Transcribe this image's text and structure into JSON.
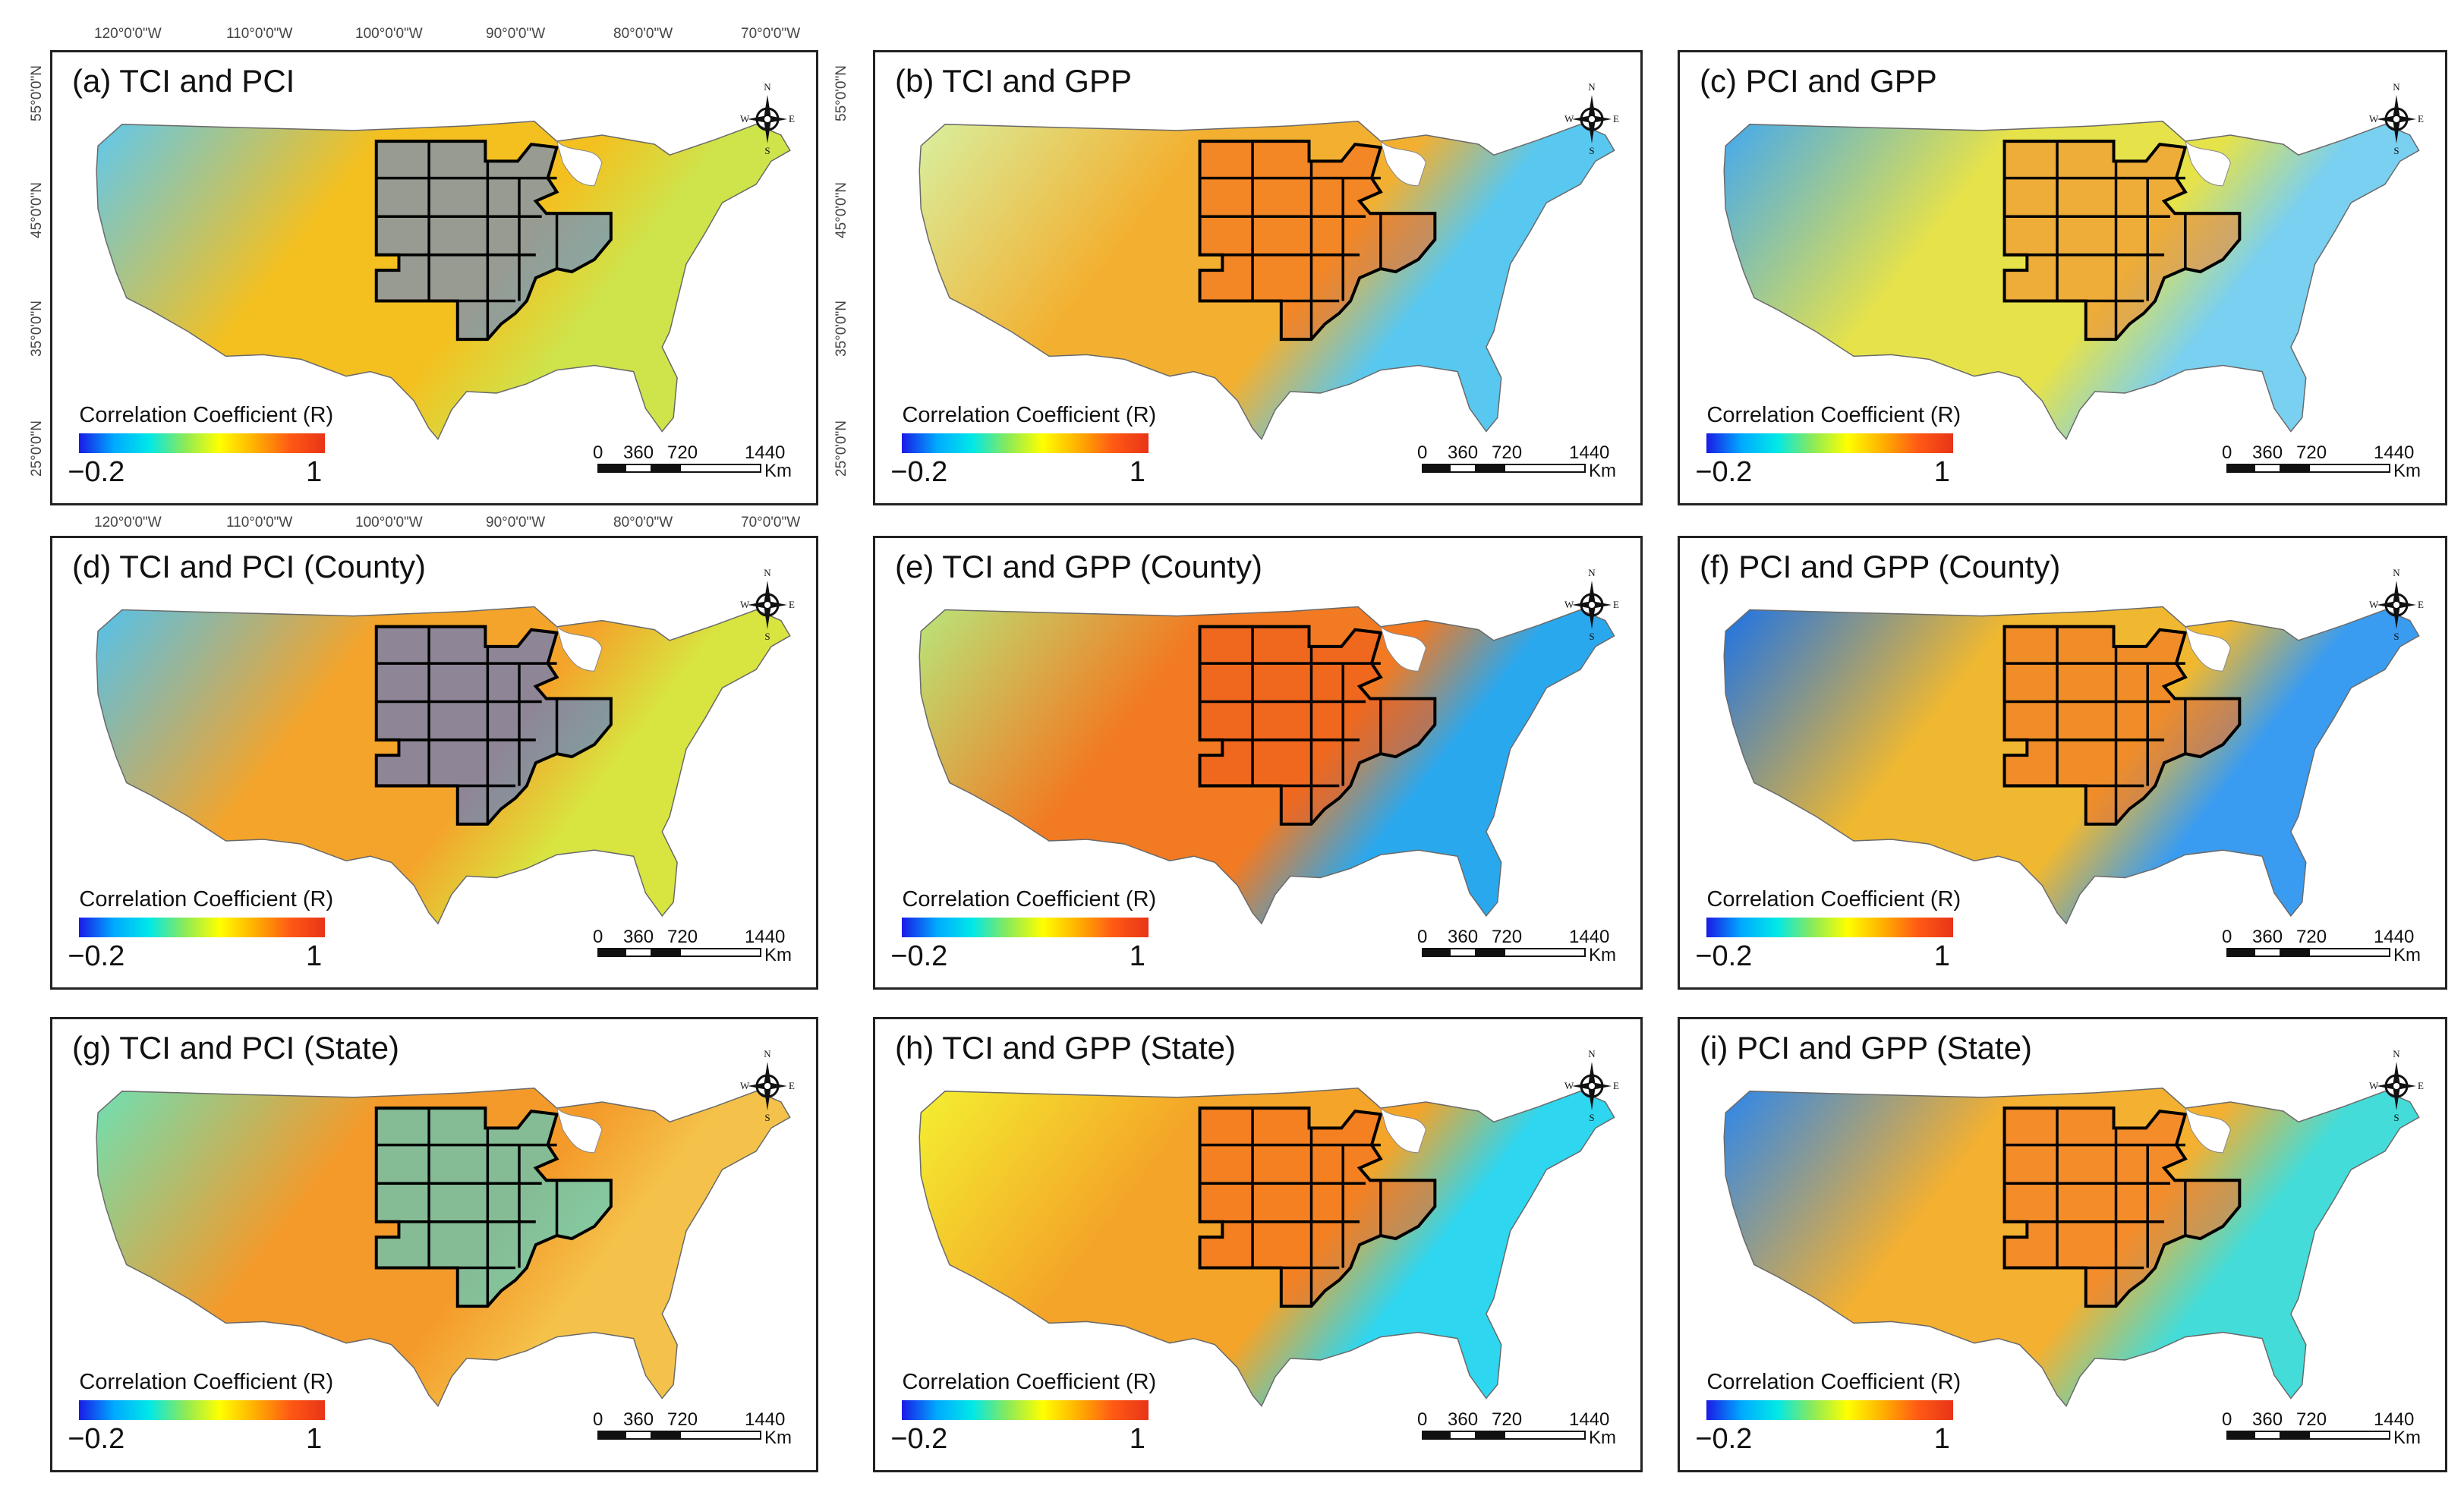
{
  "axis_labels": {
    "longitude": [
      "120°0'0\"W",
      "110°0'0\"W",
      "100°0'0\"W",
      "90°0'0\"W",
      "80°0'0\"W",
      "70°0'0\"W"
    ],
    "latitude": [
      "55°0'0\"N",
      "45°0'0\"N",
      "35°0'0\"N",
      "25°0'0\"N"
    ]
  },
  "legend": {
    "title": "Correlation Coefficient (R)",
    "min": "−0.2",
    "max": "1",
    "colors": [
      "#1a1ae6",
      "#00aaff",
      "#00e8e8",
      "#8aea5a",
      "#ffff00",
      "#ffb000",
      "#ff5a14",
      "#e83418"
    ]
  },
  "scalebar": {
    "ticks": [
      "0",
      "360",
      "720",
      "1440"
    ],
    "unit": "Km"
  },
  "compass": {
    "n": "N",
    "s": "S",
    "e": "E",
    "w": "W"
  },
  "panels": [
    {
      "id": "a",
      "title": "(a) TCI and PCI",
      "base": "#f4c020",
      "east": "#cfe34a",
      "highlight": "#4a7cf0",
      "west": "#5ec8f0"
    },
    {
      "id": "b",
      "title": "(b) TCI and GPP",
      "base": "#f3b030",
      "east": "#58c8f0",
      "highlight": "#f2641e",
      "west": "#d8f0a0"
    },
    {
      "id": "c",
      "title": "(c) PCI and GPP",
      "base": "#e6e24a",
      "east": "#7ad0f0",
      "highlight": "#f4802a",
      "west": "#42a8f0"
    },
    {
      "id": "d",
      "title": "(d) TCI and PCI (County)",
      "base": "#f4a42a",
      "east": "#d8e440",
      "highlight": "#3a6ef0",
      "west": "#52c2ee"
    },
    {
      "id": "e",
      "title": "(e) TCI and GPP (County)",
      "base": "#f27a22",
      "east": "#2aa8ee",
      "highlight": "#ef5a1a",
      "west": "#b8e67a"
    },
    {
      "id": "f",
      "title": "(f) PCI and GPP (County)",
      "base": "#f0b830",
      "east": "#3a9cf0",
      "highlight": "#f06a22",
      "west": "#1a72e8"
    },
    {
      "id": "g",
      "title": "(g) TCI and PCI (State)",
      "base": "#f49a2a",
      "east": "#f4c24a",
      "highlight": "#2ad8ee",
      "west": "#6ee0b4"
    },
    {
      "id": "h",
      "title": "(h) TCI and GPP (State)",
      "base": "#f4a428",
      "east": "#2ed6f0",
      "highlight": "#f5621c",
      "west": "#f4f030"
    },
    {
      "id": "i",
      "title": "(i) PCI and GPP (State)",
      "base": "#f4b030",
      "east": "#44dcd8",
      "highlight": "#f47026",
      "west": "#2a86ee"
    }
  ]
}
